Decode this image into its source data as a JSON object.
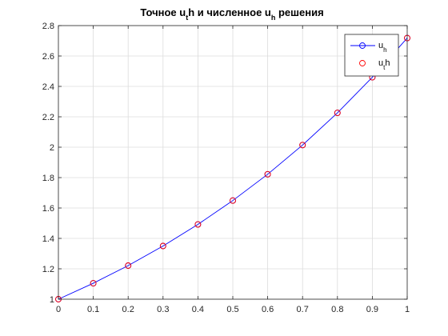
{
  "chart_data": {
    "type": "line",
    "title": {
      "parts": [
        {
          "text": "Точное u",
          "sub": false
        },
        {
          "text": "t",
          "sub": true
        },
        {
          "text": "h и численное u",
          "sub": false
        },
        {
          "text": "h",
          "sub": true
        },
        {
          "text": " решения",
          "sub": false
        }
      ]
    },
    "xlabel": "",
    "ylabel": "",
    "xlim": [
      0,
      1
    ],
    "ylim": [
      1,
      2.8
    ],
    "grid": true,
    "x_ticks": [
      "0",
      "0.1",
      "0.2",
      "0.3",
      "0.4",
      "0.5",
      "0.6",
      "0.7",
      "0.8",
      "0.9",
      "1"
    ],
    "y_ticks": [
      "1",
      "1.2",
      "1.4",
      "1.6",
      "1.8",
      "2",
      "2.2",
      "2.4",
      "2.6",
      "2.8"
    ],
    "x": [
      0,
      0.1,
      0.2,
      0.3,
      0.4,
      0.5,
      0.6,
      0.7,
      0.8,
      0.9,
      1.0
    ],
    "series": [
      {
        "name": "uh",
        "legend_parts": [
          {
            "text": "u",
            "sub": false
          },
          {
            "text": "h",
            "sub": true
          }
        ],
        "color": "#0000ff",
        "style": "line-with-circle-markers",
        "values": [
          1.0,
          1.105,
          1.221,
          1.35,
          1.492,
          1.649,
          1.822,
          2.014,
          2.226,
          2.46,
          2.718
        ]
      },
      {
        "name": "uth",
        "legend_parts": [
          {
            "text": "u",
            "sub": false
          },
          {
            "text": "t",
            "sub": true
          },
          {
            "text": "h",
            "sub": false
          }
        ],
        "color": "#ff0000",
        "style": "circle-markers",
        "values": [
          1.0,
          1.105,
          1.221,
          1.35,
          1.492,
          1.649,
          1.822,
          2.014,
          2.226,
          2.46,
          2.718
        ]
      }
    ],
    "legend_position": "top-right"
  }
}
